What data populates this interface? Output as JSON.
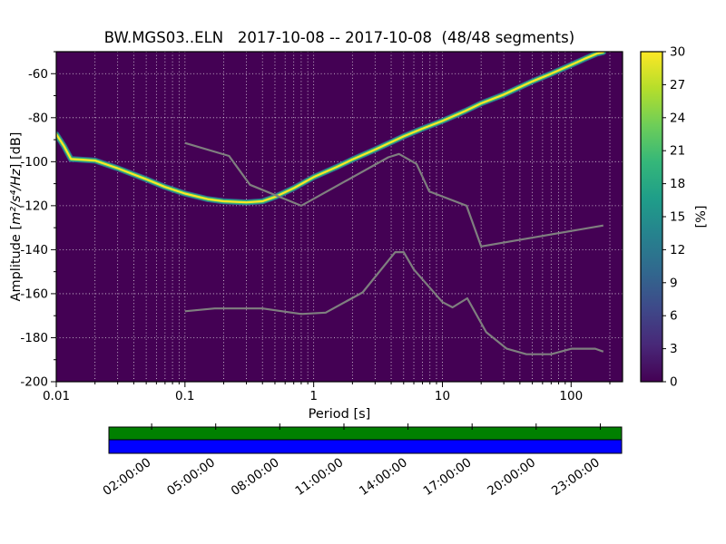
{
  "chart_data": {
    "type": "heatmap",
    "title": "BW.MGS03..ELN   2017-10-08 -- 2017-10-08  (48/48 segments)",
    "xlabel": "Period [s]",
    "ylabel": {
      "prefix": "Amplitude [",
      "math": "m²/s⁴/Hz",
      "suffix": "] [dB]"
    },
    "x_scale": "log",
    "x_range": [
      0.01,
      251
    ],
    "x_ticks": [
      0.01,
      0.1,
      1,
      10,
      100
    ],
    "x_tick_labels": [
      "0.01",
      "0.1",
      "1",
      "10",
      "100"
    ],
    "y_range": [
      -200,
      -50
    ],
    "y_ticks": [
      -200,
      -180,
      -160,
      -140,
      -120,
      -100,
      -80,
      -60
    ],
    "background_value_color": "#440154",
    "grid": true,
    "grid_color": "#ffffff",
    "psd_mode_line": {
      "name": "psd-probability-ridge",
      "core_color": "#fde725",
      "edge_color": "#35b779",
      "outer_color": "#31688e",
      "points": [
        [
          0.01,
          -87.5
        ],
        [
          0.0115,
          -93
        ],
        [
          0.013,
          -98.8
        ],
        [
          0.02,
          -99.5
        ],
        [
          0.03,
          -103
        ],
        [
          0.05,
          -108
        ],
        [
          0.07,
          -111.5
        ],
        [
          0.1,
          -114.5
        ],
        [
          0.15,
          -117
        ],
        [
          0.2,
          -118
        ],
        [
          0.3,
          -118.5
        ],
        [
          0.4,
          -118
        ],
        [
          0.5,
          -116
        ],
        [
          0.7,
          -112
        ],
        [
          1,
          -107
        ],
        [
          1.5,
          -102.5
        ],
        [
          2,
          -99
        ],
        [
          3,
          -94.5
        ],
        [
          5,
          -88.5
        ],
        [
          7,
          -85
        ],
        [
          10,
          -81.5
        ],
        [
          15,
          -77
        ],
        [
          20,
          -73.5
        ],
        [
          30,
          -69.5
        ],
        [
          50,
          -63.5
        ],
        [
          70,
          -60
        ],
        [
          100,
          -56
        ],
        [
          130,
          -53
        ],
        [
          160,
          -50.8
        ],
        [
          178,
          -50.2
        ]
      ]
    },
    "noise_models": {
      "color": "#7f7f7f",
      "high_noise_model": [
        [
          0.1,
          -91.5
        ],
        [
          0.22,
          -97.4
        ],
        [
          0.32,
          -110.5
        ],
        [
          0.8,
          -120
        ],
        [
          3.8,
          -98
        ],
        [
          4.6,
          -96.5
        ],
        [
          6.3,
          -101
        ],
        [
          7.9,
          -113.5
        ],
        [
          15.4,
          -120
        ],
        [
          20,
          -138.5
        ],
        [
          178,
          -129
        ]
      ],
      "low_noise_model": [
        [
          0.1,
          -168
        ],
        [
          0.17,
          -166.7
        ],
        [
          0.4,
          -166.7
        ],
        [
          0.8,
          -169.2
        ],
        [
          1.24,
          -168.6
        ],
        [
          2.4,
          -159.4
        ],
        [
          4.3,
          -141.1
        ],
        [
          5,
          -141.1
        ],
        [
          6,
          -149
        ],
        [
          10,
          -163.8
        ],
        [
          12,
          -166.2
        ],
        [
          15.6,
          -162.1
        ],
        [
          21.9,
          -177.5
        ],
        [
          31.6,
          -185
        ],
        [
          45,
          -187.5
        ],
        [
          70,
          -187.5
        ],
        [
          101,
          -185
        ],
        [
          154,
          -185
        ],
        [
          178,
          -186.3
        ]
      ]
    },
    "colorbar": {
      "label": "[%]",
      "min": 0,
      "max": 30,
      "ticks": [
        0,
        3,
        6,
        9,
        12,
        15,
        18,
        21,
        24,
        27,
        30
      ],
      "viridis_stops": [
        "#440154",
        "#482878",
        "#3e4989",
        "#31688e",
        "#26828e",
        "#1f9e89",
        "#35b779",
        "#6ece58",
        "#b5de2b",
        "#fde725"
      ]
    },
    "availability_bar": {
      "top_color": "#008000",
      "bottom_color": "#0000ff",
      "hours_range": [
        0,
        24
      ],
      "tick_hours": [
        2,
        5,
        8,
        11,
        14,
        17,
        20,
        23
      ],
      "tick_labels": [
        "02:00:00",
        "05:00:00",
        "08:00:00",
        "11:00:00",
        "14:00:00",
        "17:00:00",
        "20:00:00",
        "23:00:00"
      ]
    }
  }
}
